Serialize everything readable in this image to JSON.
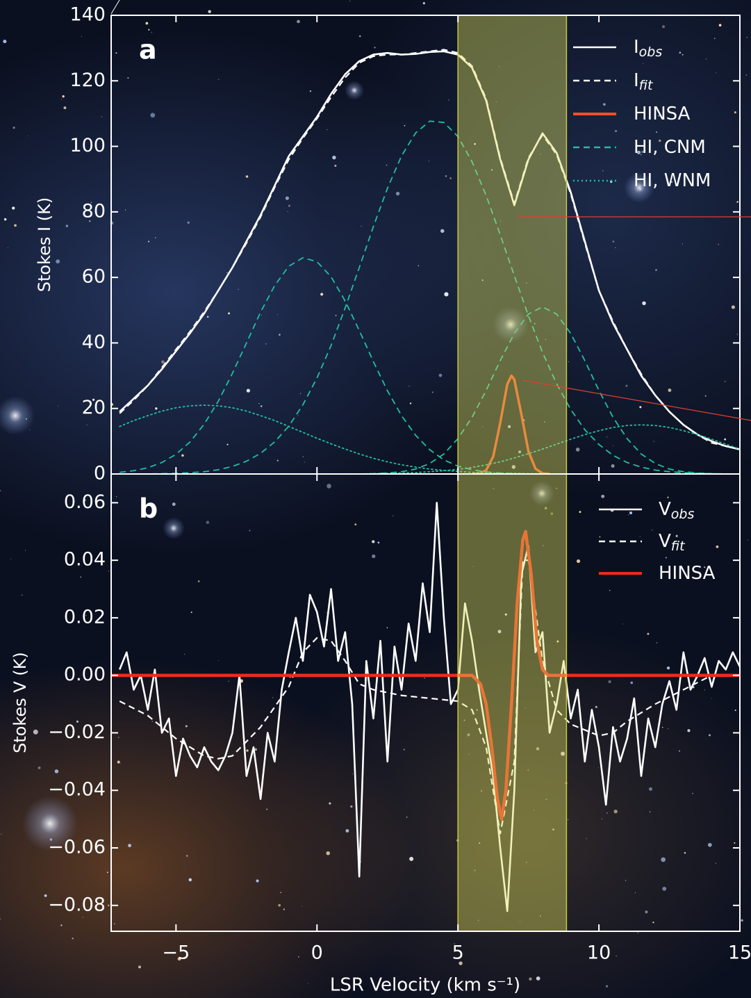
{
  "chart_data": [
    {
      "type": "line",
      "panel_label": "a",
      "y_label": "Stokes I (K)",
      "xlim": [
        -7.3,
        15
      ],
      "ylim": [
        0,
        140
      ],
      "xticks": [
        {
          "value": -5,
          "label": "−5"
        },
        0,
        5,
        10,
        15
      ],
      "xtick_labels": false,
      "yticks": [
        0,
        20,
        40,
        60,
        80,
        100,
        120,
        140
      ],
      "highlight": [
        5,
        8.85
      ],
      "legend": "upper right",
      "x": [
        -7,
        -6.5,
        -6,
        -5.5,
        -5,
        -4.5,
        -4,
        -3.5,
        -3,
        -2.5,
        -2,
        -1.5,
        -1,
        -0.5,
        0,
        0.5,
        1,
        1.5,
        2,
        2.5,
        3,
        3.5,
        4,
        4.5,
        5,
        5.5,
        6,
        6.5,
        7,
        7.5,
        8,
        8.5,
        9,
        9.5,
        10,
        10.5,
        11,
        11.5,
        12,
        12.5,
        13,
        13.5,
        14,
        14.5,
        15
      ],
      "series": [
        {
          "name": "I",
          "subscript": "obs",
          "color": "#ffffff",
          "style": "solid",
          "values": [
            19,
            23,
            27,
            32,
            37.5,
            43,
            49,
            56,
            63,
            71,
            79,
            88,
            97,
            103,
            109,
            116,
            122,
            126,
            128,
            128.5,
            128,
            128.2,
            128.8,
            129,
            128,
            124,
            114,
            96,
            82,
            96,
            104,
            98,
            86,
            71,
            56,
            46,
            38,
            30,
            24,
            19,
            15,
            12,
            10,
            8.5,
            7.5
          ]
        },
        {
          "name": "I",
          "subscript": "fit",
          "color": "#ffffff",
          "style": "dashed",
          "values": [
            18.5,
            22.5,
            27,
            32.5,
            38,
            43.5,
            49.5,
            56,
            63,
            70.5,
            78.5,
            87.5,
            96,
            102.5,
            108.5,
            115,
            121,
            125.5,
            127.5,
            128,
            128,
            128.5,
            129,
            129.5,
            128.5,
            124.5,
            114.5,
            96.5,
            82.5,
            96.5,
            103.5,
            97.5,
            85.5,
            70.5,
            56,
            46.5,
            38,
            30.5,
            24,
            19,
            15,
            12,
            9.5,
            8.5,
            7.5
          ]
        },
        {
          "name": "HINSA",
          "color": "#f0502a",
          "style": "solid",
          "x": [
            5.5,
            5.75,
            6,
            6.25,
            6.5,
            6.75,
            6.9,
            7,
            7.25,
            7.5,
            7.75,
            8,
            8.25
          ],
          "values": [
            0,
            0.1,
            1.1,
            5.3,
            15.6,
            27.4,
            30,
            28.8,
            18.2,
            6.9,
            1.6,
            0.2,
            0
          ]
        },
        {
          "name": "HI, CNM",
          "color": "#1fc0a0",
          "style": "dashed",
          "values": [
            0.5,
            1.0,
            1.9,
            3.5,
            6.0,
            9.8,
            15.2,
            22.2,
            30.7,
            40.0,
            49.4,
            57.5,
            63.4,
            66.0,
            64.8,
            60.2,
            52.8,
            43.8,
            34.3,
            25.4,
            17.8,
            11.8,
            7.4,
            4.3,
            2.4,
            1.3,
            0.6,
            0.3,
            0.1,
            0,
            0,
            0,
            0,
            0,
            0,
            0,
            0,
            0,
            0,
            0,
            0,
            0,
            0,
            0,
            0
          ]
        },
        {
          "name": "HI, CNM",
          "color": "#1fc0a0",
          "style": "dashed",
          "legend": false,
          "values": [
            0,
            0,
            0,
            0.1,
            0.2,
            0.4,
            0.7,
            1.3,
            2.3,
            3.9,
            6.3,
            9.8,
            14.6,
            21.1,
            29.3,
            39.2,
            50.7,
            63.0,
            75.5,
            87.2,
            97.1,
            104.1,
            107.7,
            107.3,
            103.0,
            95.3,
            85.0,
            73.0,
            60.5,
            48.3,
            37.1,
            27.5,
            19.7,
            13.5,
            9.0,
            5.7,
            3.5,
            2.1,
            1.2,
            0.7,
            0.4,
            0.2,
            0.1,
            0,
            0
          ]
        },
        {
          "name": "HI, CNM",
          "color": "#1fc0a0",
          "style": "dashed",
          "legend": false,
          "values": [
            0,
            0,
            0,
            0,
            0,
            0,
            0,
            0,
            0,
            0,
            0,
            0,
            0,
            0,
            0,
            0,
            0,
            0,
            0.1,
            0.3,
            0.7,
            1.5,
            3.2,
            6.1,
            10.8,
            17.3,
            25.5,
            34.6,
            42.9,
            48.8,
            51,
            48.8,
            42.9,
            34.6,
            25.5,
            17.3,
            10.8,
            6.1,
            3.2,
            1.5,
            0.7,
            0.3,
            0.1,
            0,
            0
          ]
        },
        {
          "name": "HI, WNM",
          "color": "#1fc0a0",
          "style": "dotted",
          "values": [
            14.5,
            16.3,
            17.8,
            19.2,
            20.2,
            20.8,
            21,
            20.8,
            20.2,
            19.2,
            17.8,
            16.3,
            14.5,
            12.7,
            10.9,
            9.2,
            7.6,
            6.1,
            4.8,
            3.7,
            2.8,
            2.1,
            1.5,
            1.1,
            0.8,
            0.5,
            0.4,
            0.2,
            0.2,
            0.1,
            0.1,
            0,
            0,
            0,
            0,
            0,
            0,
            0,
            0,
            0,
            0,
            0,
            0,
            0,
            0
          ]
        },
        {
          "name": "HI, WNM",
          "color": "#1fc0a0",
          "style": "dotted",
          "legend": false,
          "values": [
            0,
            0,
            0,
            0,
            0,
            0,
            0,
            0,
            0,
            0,
            0,
            0,
            0,
            0,
            0,
            0,
            0,
            0,
            0.1,
            0.2,
            0.3,
            0.4,
            0.7,
            1.0,
            1.4,
            2.0,
            2.8,
            3.7,
            4.9,
            6.2,
            7.6,
            9.1,
            10.6,
            12.0,
            13.2,
            14.2,
            14.8,
            15,
            14.8,
            14.2,
            13.2,
            12.0,
            10.6,
            9.1,
            7.6
          ]
        }
      ]
    },
    {
      "type": "line",
      "panel_label": "b",
      "y_label": "Stokes V (K)",
      "x_label": "LSR Velocity (km s⁻¹)",
      "xlim": [
        -7.3,
        15
      ],
      "ylim": [
        -0.089,
        0.07
      ],
      "xticks": [
        {
          "value": -5,
          "label": "−5"
        },
        0,
        5,
        10,
        15
      ],
      "xtick_labels": true,
      "yticks": [
        {
          "value": 0.06,
          "label": "0.06"
        },
        {
          "value": 0.04,
          "label": "0.04"
        },
        {
          "value": 0.02,
          "label": "0.02"
        },
        {
          "value": 0,
          "label": "0.00"
        },
        {
          "value": -0.02,
          "label": "−0.02"
        },
        {
          "value": -0.04,
          "label": "−0.04"
        },
        {
          "value": -0.06,
          "label": "−0.06"
        },
        {
          "value": -0.08,
          "label": "−0.08"
        }
      ],
      "highlight": [
        5,
        8.85
      ],
      "legend": "upper right",
      "x": [
        -7,
        -6.75,
        -6.5,
        -6.25,
        -6,
        -5.75,
        -5.5,
        -5.25,
        -5,
        -4.75,
        -4.5,
        -4.25,
        -4,
        -3.75,
        -3.5,
        -3.25,
        -3,
        -2.75,
        -2.5,
        -2.25,
        -2,
        -1.75,
        -1.5,
        -1.25,
        -1,
        -0.75,
        -0.5,
        -0.25,
        0,
        0.25,
        0.5,
        0.75,
        1,
        1.25,
        1.5,
        1.75,
        2,
        2.25,
        2.5,
        2.75,
        3,
        3.25,
        3.5,
        3.75,
        4,
        4.25,
        4.5,
        4.75,
        5,
        5.25,
        5.5,
        5.75,
        6,
        6.25,
        6.5,
        6.75,
        7,
        7.25,
        7.5,
        7.75,
        8,
        8.25,
        8.5,
        8.75,
        9,
        9.25,
        9.5,
        9.75,
        10,
        10.25,
        10.5,
        10.75,
        11,
        11.25,
        11.5,
        11.75,
        12,
        12.25,
        12.5,
        12.75,
        13,
        13.25,
        13.5,
        13.75,
        14,
        14.25,
        14.5,
        14.75,
        15
      ],
      "series": [
        {
          "name": "V",
          "subscript": "obs",
          "color": "#ffffff",
          "style": "solid",
          "values": [
            0.002,
            0.008,
            -0.005,
            0.0,
            -0.012,
            0.002,
            -0.02,
            -0.015,
            -0.035,
            -0.022,
            -0.028,
            -0.032,
            -0.025,
            -0.03,
            -0.033,
            -0.028,
            -0.02,
            0.0,
            -0.035,
            -0.025,
            -0.043,
            -0.02,
            -0.03,
            -0.005,
            0.008,
            0.02,
            0.005,
            0.028,
            0.022,
            0.01,
            0.03,
            0.005,
            0.015,
            -0.01,
            -0.07,
            0.005,
            -0.015,
            0.012,
            -0.03,
            0.01,
            -0.005,
            0.018,
            0.005,
            0.032,
            0.015,
            0.06,
            0.02,
            -0.01,
            -0.005,
            0.025,
            0.012,
            -0.005,
            -0.02,
            -0.035,
            -0.06,
            -0.082,
            -0.04,
            0.035,
            0.045,
            0.008,
            0.015,
            -0.02,
            -0.01,
            0.005,
            -0.015,
            -0.005,
            -0.03,
            -0.012,
            -0.025,
            -0.045,
            -0.018,
            -0.03,
            -0.022,
            -0.008,
            -0.035,
            -0.015,
            -0.025,
            -0.01,
            -0.002,
            -0.012,
            0.008,
            -0.005,
            0.0,
            0.006,
            -0.004,
            0.005,
            0.002,
            0.008,
            0.003
          ]
        },
        {
          "name": "V",
          "subscript": "fit",
          "color": "#ffffff",
          "style": "dashed",
          "x": [
            -7,
            -6,
            -5,
            -4,
            -3.5,
            -3,
            -2,
            -1,
            -0.5,
            0,
            0.5,
            1,
            1.5,
            2,
            3,
            4,
            5,
            5.5,
            6,
            6.5,
            7,
            7.3,
            7.5,
            8,
            8.5,
            9,
            10,
            10.5,
            11,
            12,
            13,
            14,
            15
          ],
          "values": [
            -0.009,
            -0.014,
            -0.022,
            -0.028,
            -0.029,
            -0.028,
            -0.018,
            -0.004,
            0.008,
            0.013,
            0.012,
            0.005,
            -0.003,
            -0.005,
            -0.007,
            -0.008,
            -0.009,
            -0.012,
            -0.025,
            -0.055,
            -0.03,
            0.04,
            0.04,
            0.005,
            -0.012,
            -0.017,
            -0.021,
            -0.02,
            -0.016,
            -0.01,
            -0.005,
            0,
            0
          ]
        },
        {
          "name": "HINSA",
          "color": "#ee2a1e",
          "style": "solid",
          "x": [
            -7.3,
            5.5,
            5.8,
            6,
            6.2,
            6.4,
            6.55,
            6.7,
            6.9,
            7.1,
            7.3,
            7.4,
            7.6,
            7.8,
            8,
            8.2,
            15
          ],
          "values": [
            0,
            0,
            -0.003,
            -0.01,
            -0.025,
            -0.043,
            -0.05,
            -0.04,
            -0.01,
            0.025,
            0.047,
            0.05,
            0.035,
            0.012,
            0.002,
            0,
            0
          ]
        }
      ]
    }
  ]
}
